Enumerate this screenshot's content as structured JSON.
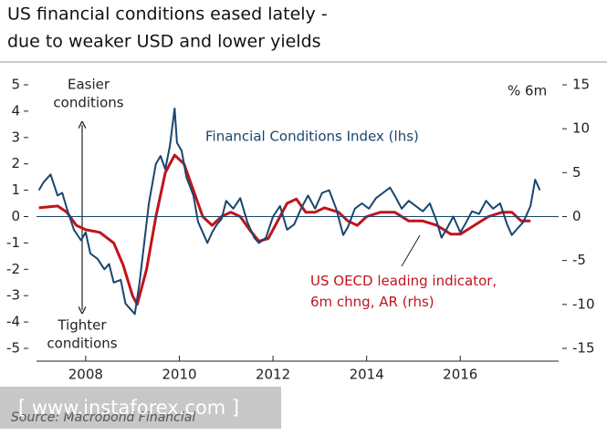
{
  "chart_data": {
    "type": "line",
    "title": [
      "US financial conditions eased lately -",
      "due to weaker USD and lower yields"
    ],
    "source": "Source: Macrobond Financial",
    "watermark": "[ www.instaforex.com ]",
    "y2_unit": "% 6m",
    "annotations": {
      "easier": [
        "Easier",
        "conditions"
      ],
      "tighter": [
        "Tighter",
        "conditions"
      ]
    },
    "xlim": [
      2006.95,
      2018.1
    ],
    "xticks": [
      2008,
      2010,
      2012,
      2014,
      2016
    ],
    "ylim": [
      -5,
      5
    ],
    "yticks": [
      -5,
      -4,
      -3,
      -2,
      -1,
      0,
      1,
      2,
      3,
      4,
      5
    ],
    "y2lim": [
      -15,
      15
    ],
    "y2ticks": [
      -15,
      -10,
      -5,
      0,
      5,
      10,
      15
    ],
    "series": [
      {
        "name": "Financial Conditions Index (lhs)",
        "color": "#18466f",
        "axis": "y",
        "x": [
          2007.0,
          2007.1,
          2007.25,
          2007.4,
          2007.5,
          2007.6,
          2007.75,
          2007.9,
          2008.0,
          2008.1,
          2008.25,
          2008.4,
          2008.5,
          2008.6,
          2008.75,
          2008.85,
          2008.95,
          2009.05,
          2009.15,
          2009.25,
          2009.35,
          2009.5,
          2009.6,
          2009.7,
          2009.8,
          2009.9,
          2009.95,
          2010.05,
          2010.15,
          2010.3,
          2010.4,
          2010.5,
          2010.6,
          2010.7,
          2010.8,
          2010.9,
          2011.0,
          2011.15,
          2011.3,
          2011.45,
          2011.6,
          2011.7,
          2011.85,
          2012.0,
          2012.15,
          2012.3,
          2012.45,
          2012.6,
          2012.75,
          2012.9,
          2013.05,
          2013.2,
          2013.35,
          2013.5,
          2013.6,
          2013.75,
          2013.9,
          2014.05,
          2014.2,
          2014.35,
          2014.5,
          2014.6,
          2014.75,
          2014.9,
          2015.05,
          2015.2,
          2015.35,
          2015.5,
          2015.6,
          2015.7,
          2015.85,
          2016.0,
          2016.1,
          2016.25,
          2016.4,
          2016.55,
          2016.7,
          2016.85,
          2017.0,
          2017.1,
          2017.2,
          2017.35,
          2017.5,
          2017.6,
          2017.7
        ],
        "values": [
          1.0,
          1.3,
          1.6,
          0.8,
          0.9,
          0.3,
          -0.5,
          -0.9,
          -0.6,
          -1.4,
          -1.6,
          -2.0,
          -1.8,
          -2.5,
          -2.4,
          -3.3,
          -3.5,
          -3.7,
          -2.5,
          -1.0,
          0.5,
          2.0,
          2.3,
          1.8,
          2.7,
          4.1,
          2.8,
          2.5,
          1.5,
          0.8,
          -0.2,
          -0.6,
          -1.0,
          -0.6,
          -0.3,
          -0.1,
          0.6,
          0.3,
          0.7,
          -0.2,
          -0.8,
          -1.0,
          -0.8,
          0.0,
          0.4,
          -0.5,
          -0.3,
          0.3,
          0.8,
          0.3,
          0.9,
          1.0,
          0.3,
          -0.7,
          -0.4,
          0.3,
          0.5,
          0.3,
          0.7,
          0.9,
          1.1,
          0.8,
          0.3,
          0.6,
          0.4,
          0.2,
          0.5,
          -0.2,
          -0.8,
          -0.5,
          0.0,
          -0.6,
          -0.3,
          0.2,
          0.1,
          0.6,
          0.3,
          0.5,
          -0.3,
          -0.7,
          -0.5,
          -0.2,
          0.4,
          1.4,
          1.0
        ]
      },
      {
        "name": "US OECD leading indicator, 6m chng, AR (rhs)",
        "color": "#c0141c",
        "axis": "y2",
        "x": [
          2007.0,
          2007.4,
          2007.6,
          2007.8,
          2008.0,
          2008.3,
          2008.6,
          2008.8,
          2009.0,
          2009.1,
          2009.3,
          2009.5,
          2009.7,
          2009.9,
          2010.1,
          2010.3,
          2010.5,
          2010.7,
          2010.9,
          2011.1,
          2011.3,
          2011.5,
          2011.7,
          2011.9,
          2012.1,
          2012.3,
          2012.5,
          2012.7,
          2012.9,
          2013.1,
          2013.4,
          2013.6,
          2013.8,
          2014.0,
          2014.3,
          2014.6,
          2014.9,
          2015.2,
          2015.5,
          2015.8,
          2016.0,
          2016.3,
          2016.6,
          2016.9,
          2017.1,
          2017.3,
          2017.5
        ],
        "values": [
          1.0,
          1.2,
          0.5,
          -1.0,
          -1.5,
          -1.8,
          -3.0,
          -5.5,
          -9.0,
          -10.0,
          -6.0,
          0.0,
          5.0,
          7.0,
          6.0,
          3.0,
          0.0,
          -1.0,
          0.0,
          0.5,
          0.0,
          -1.5,
          -2.8,
          -2.5,
          -0.5,
          1.5,
          2.0,
          0.5,
          0.5,
          1.0,
          0.5,
          -0.5,
          -1.0,
          0.0,
          0.5,
          0.5,
          -0.5,
          -0.5,
          -1.0,
          -2.0,
          -2.0,
          -1.0,
          0.0,
          0.5,
          0.5,
          -0.5,
          -0.5
        ]
      }
    ]
  }
}
